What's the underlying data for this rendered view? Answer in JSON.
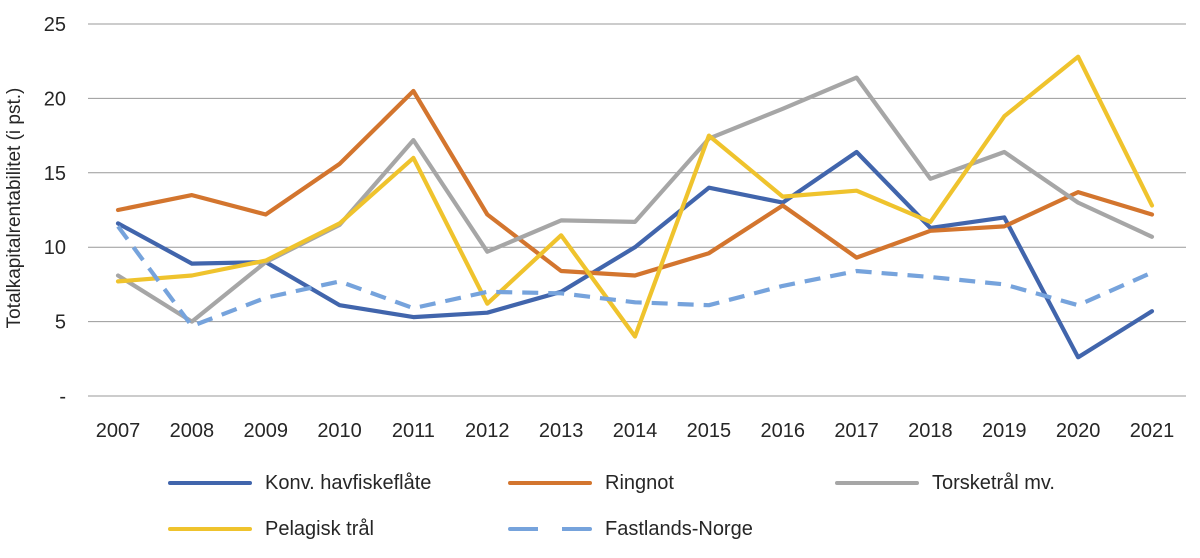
{
  "chart_data": {
    "type": "line",
    "title": "",
    "xlabel": "",
    "ylabel": "Totalkapitalrentabilitet (i pst.)",
    "ylim": [
      0,
      25
    ],
    "grid": "horizontal-only",
    "legend_position": "bottom",
    "ytick_values": [
      0,
      5,
      10,
      15,
      20,
      25
    ],
    "ytick_labels": [
      "-",
      "5",
      "10",
      "15",
      "20",
      "25"
    ],
    "categories": [
      "2007",
      "2008",
      "2009",
      "2010",
      "2011",
      "2012",
      "2013",
      "2014",
      "2015",
      "2016",
      "2017",
      "2018",
      "2019",
      "2020",
      "2021"
    ],
    "series": [
      {
        "name": "Konv. havfiskeflåte",
        "color": "#4165AC",
        "line_style": "solid",
        "values": [
          11.6,
          8.9,
          9.0,
          6.1,
          5.3,
          5.6,
          7.0,
          10.0,
          14.0,
          13.0,
          16.4,
          11.3,
          12.0,
          2.6,
          5.7
        ]
      },
      {
        "name": "Ringnot",
        "color": "#D3752E",
        "line_style": "solid",
        "values": [
          12.5,
          13.5,
          12.2,
          15.6,
          20.5,
          12.2,
          8.4,
          8.1,
          9.6,
          12.8,
          9.3,
          11.1,
          11.4,
          13.7,
          12.2
        ]
      },
      {
        "name": "Torsketrål mv.",
        "color": "#A6A6A6",
        "line_style": "solid",
        "values": [
          8.1,
          5.0,
          9.0,
          11.5,
          17.2,
          9.7,
          11.8,
          11.7,
          17.3,
          19.3,
          21.4,
          14.6,
          16.4,
          13.0,
          10.7
        ]
      },
      {
        "name": "Pelagisk trål",
        "color": "#EFC32D",
        "line_style": "solid",
        "values": [
          7.7,
          8.1,
          9.1,
          11.6,
          16.0,
          6.2,
          10.8,
          4.0,
          17.5,
          13.4,
          13.8,
          11.7,
          18.8,
          22.8,
          12.8
        ]
      },
      {
        "name": "Fastlands-Norge",
        "color": "#76A3DC",
        "line_style": "dashed",
        "values": [
          11.4,
          4.7,
          6.6,
          7.7,
          5.9,
          7.0,
          6.9,
          6.3,
          6.1,
          7.4,
          8.4,
          8.0,
          7.5,
          6.1,
          8.3
        ]
      }
    ]
  }
}
